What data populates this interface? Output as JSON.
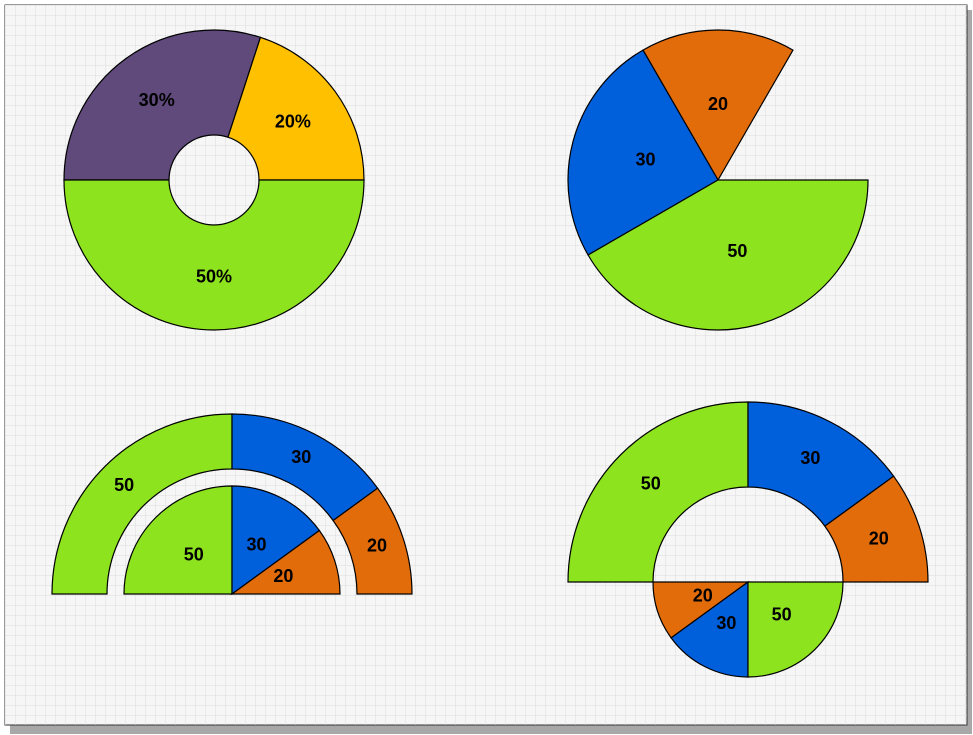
{
  "shapes": [
    {
      "slices": [
        {
          "value": 20,
          "label": "20%",
          "color": "#ffc000"
        },
        {
          "value": 30,
          "label": "30%",
          "color": "#5f4a7b"
        },
        {
          "value": 50,
          "label": "50%",
          "color": "#8ee31f"
        }
      ]
    },
    {
      "slices": [
        {
          "value": 20,
          "color": "#e26b0a"
        },
        {
          "value": 30,
          "color": "#005fdb"
        },
        {
          "value": 50,
          "color": "#8ee31f"
        }
      ]
    },
    {
      "slices": [
        {
          "value": 50,
          "color": "#8ee31f"
        },
        {
          "value": 30,
          "color": "#005fdb"
        },
        {
          "value": 20,
          "color": "#e26b0a"
        }
      ]
    },
    {
      "slices": [
        {
          "value": 50,
          "color": "#8ee31f"
        },
        {
          "value": 30,
          "color": "#005fdb"
        },
        {
          "value": 20,
          "color": "#e26b0a"
        }
      ]
    },
    {
      "slices": [
        {
          "value": 50,
          "color": "#8ee31f"
        },
        {
          "value": 30,
          "color": "#005fdb"
        },
        {
          "value": 20,
          "color": "#e26b0a"
        }
      ]
    },
    {
      "slices": [
        {
          "value": 20,
          "color": "#e26b0a"
        },
        {
          "value": 30,
          "color": "#005fdb"
        },
        {
          "value": 50,
          "color": "#8ee31f"
        }
      ]
    }
  ]
}
